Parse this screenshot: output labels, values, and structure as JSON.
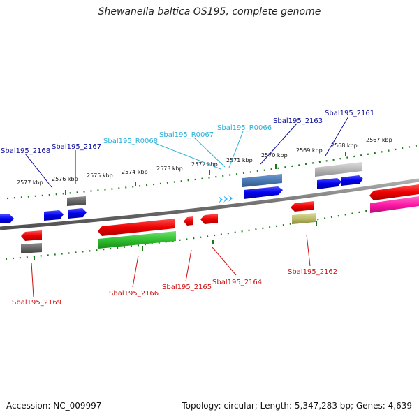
{
  "title": "Shewanella baltica OS195, complete genome",
  "accession": "Accession: NC_009997",
  "topology": "Topology: circular; Length: 5,347,283 bp; Genes: 4,639",
  "colors": {
    "protein_label": "#0a0a9a",
    "rna_label": "#2ab0d8",
    "reverse_label": "#cc1111",
    "tick": "#1a7a1a",
    "backbone": "#777777"
  },
  "kbp_labels": [
    "2577 kbp",
    "2576 kbp",
    "2575 kbp",
    "2574 kbp",
    "2573 kbp",
    "2572 kbp",
    "2571 kbp",
    "2570 kbp",
    "2569 kbp",
    "2568 kbp",
    "2567 kbp"
  ],
  "gene_labels": {
    "top": [
      "Sbal195_2168",
      "Sbal195_2167",
      "Sbal195_R0068",
      "Sbal195_R0067",
      "Sbal195_R0066",
      "Sbal195_2163",
      "Sbal195_2161"
    ],
    "bottom": [
      "Sbal195_2169",
      "Sbal195_2166",
      "Sbal195_2165",
      "Sbal195_2164",
      "Sbal195_2162"
    ]
  }
}
